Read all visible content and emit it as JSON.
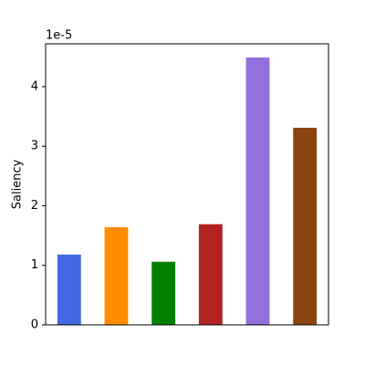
{
  "chart_data": {
    "type": "bar",
    "y_label": "Saliency",
    "y_offset_text": "1e-5",
    "categories": [
      null,
      null,
      null,
      null,
      null,
      null
    ],
    "values": [
      1.18,
      1.64,
      1.06,
      1.69,
      4.49,
      3.31
    ],
    "colors": [
      "#4169e1",
      "#ff8c00",
      "#008000",
      "#b22222",
      "#9370db",
      "#8b4513"
    ],
    "ylim": [
      0,
      4.72
    ],
    "yticks": [
      0,
      1,
      2,
      3,
      4
    ],
    "grid": false
  }
}
